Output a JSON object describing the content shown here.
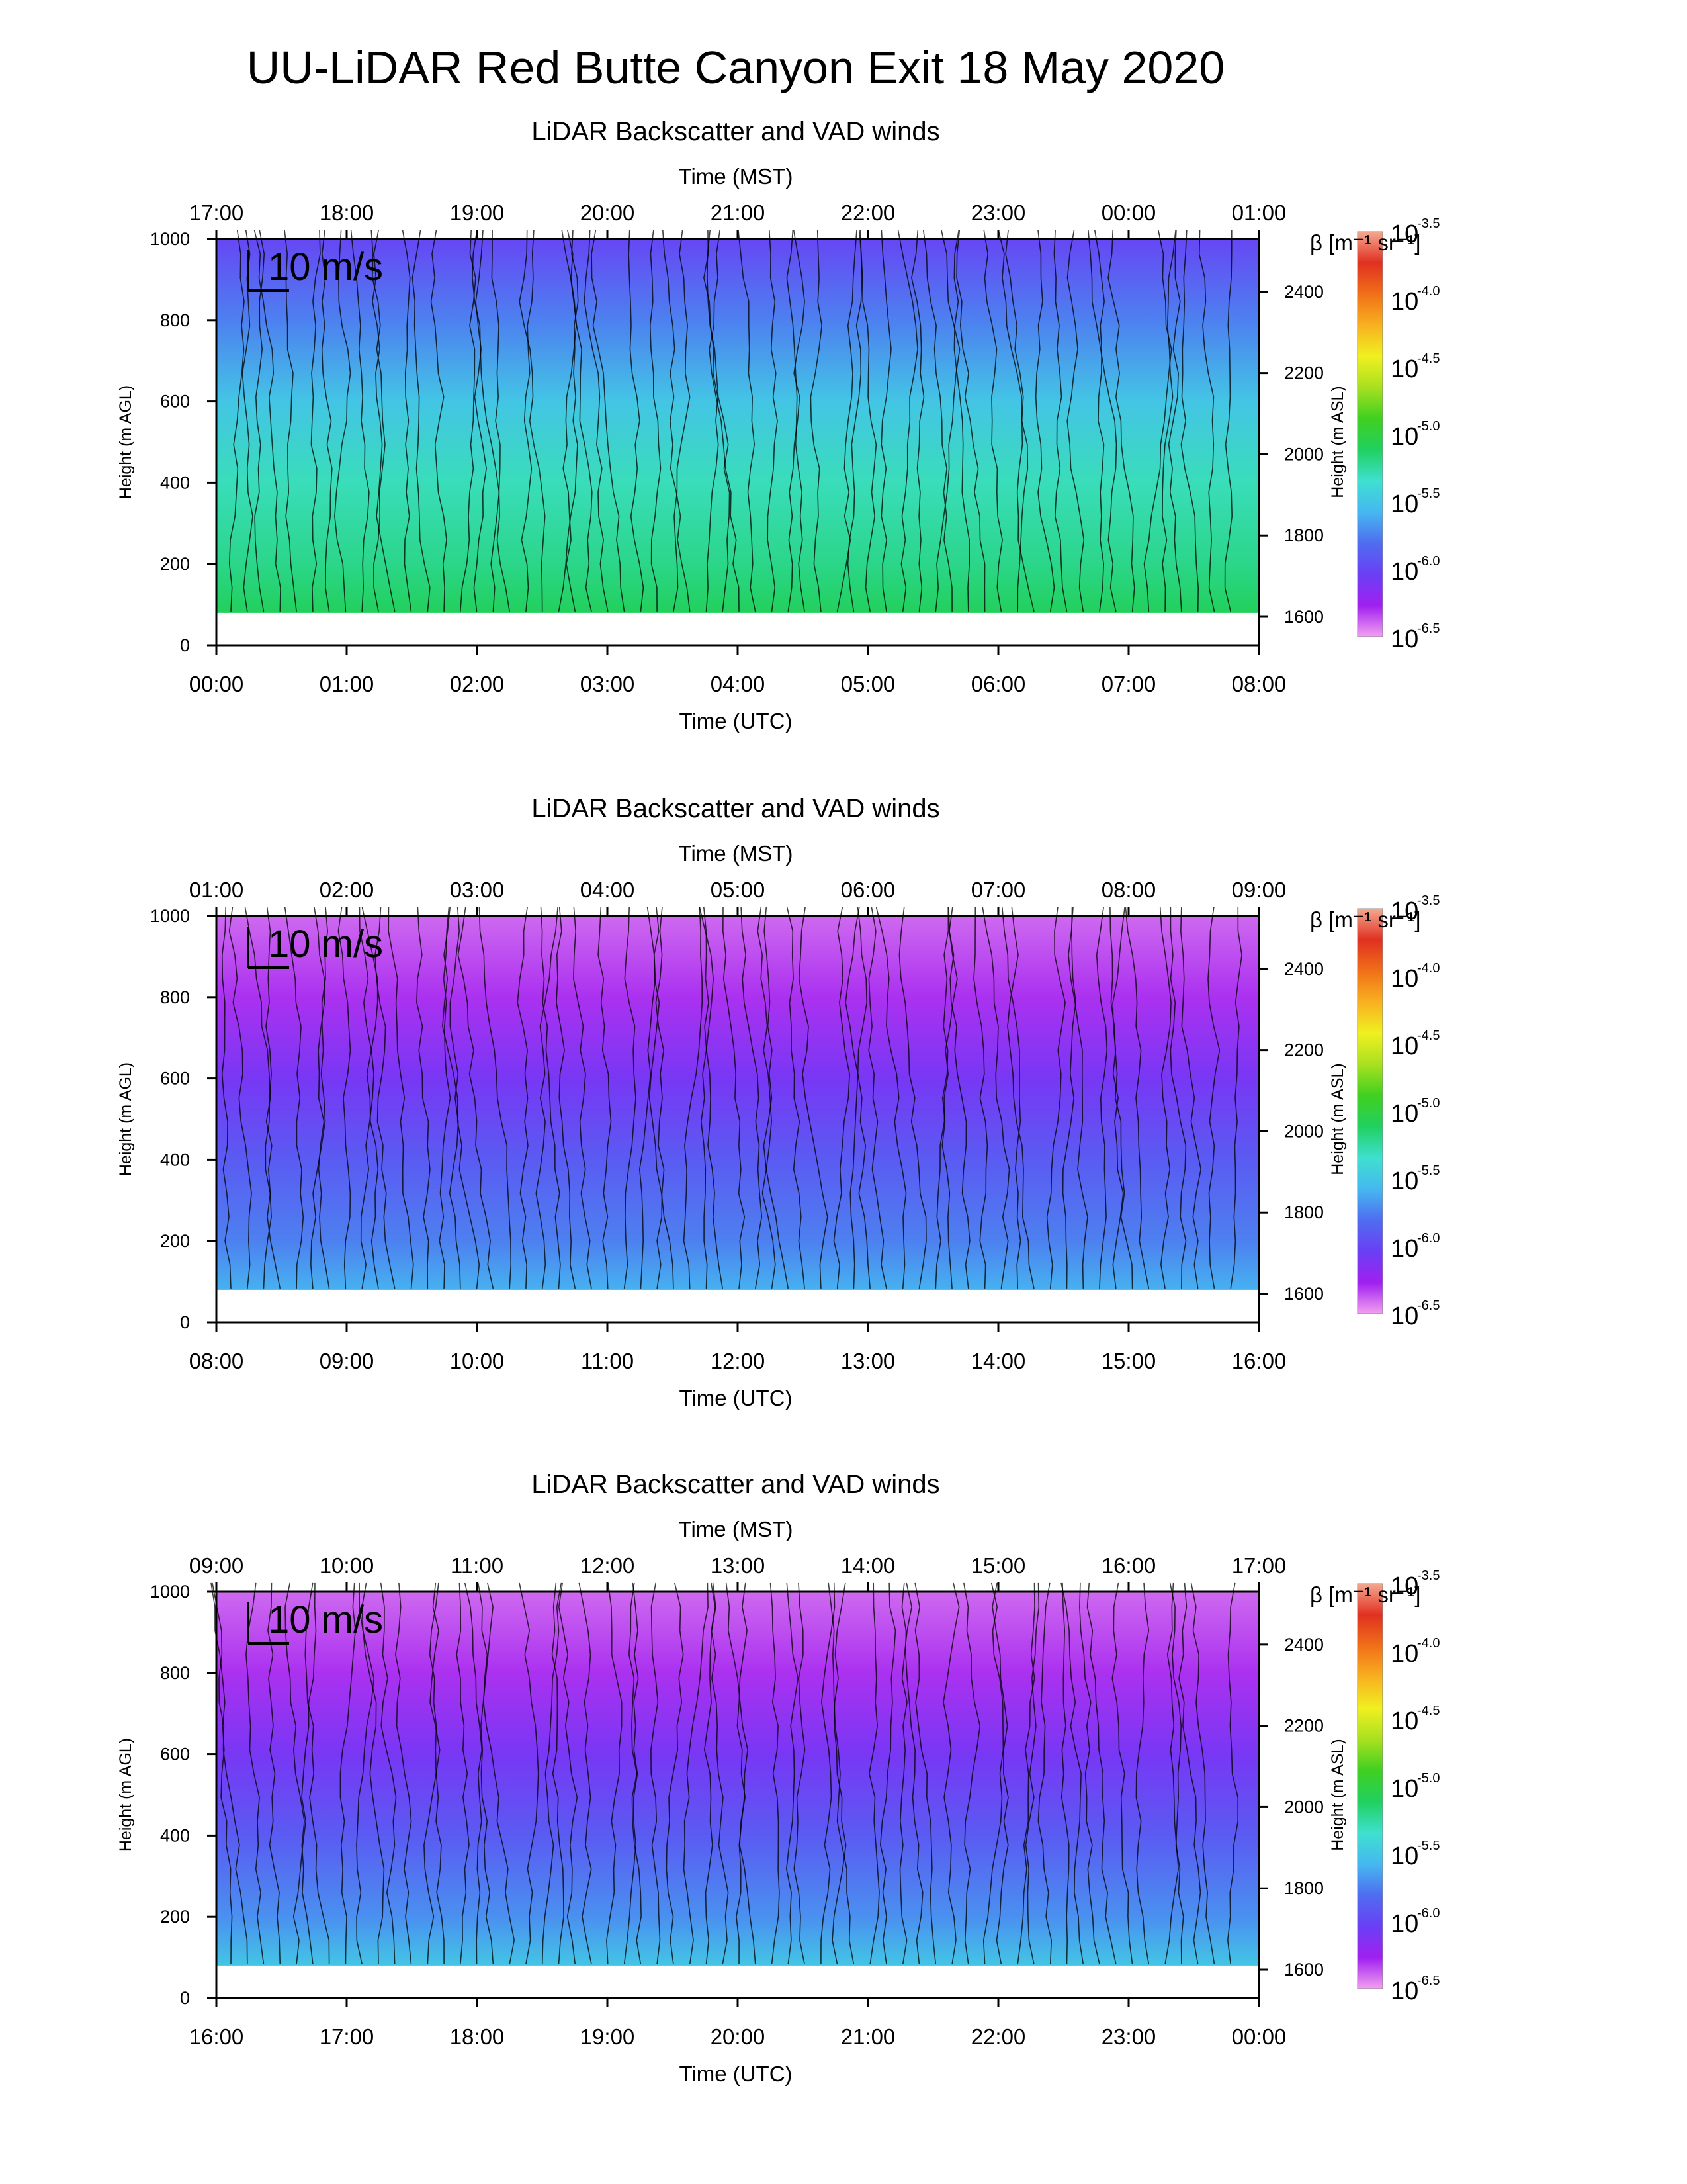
{
  "page": {
    "title": "UU-LiDAR Red Butte Canyon Exit 18 May 2020"
  },
  "colors": {
    "axis": "#000000",
    "background": "#ffffff",
    "wind_barbs": "#000000",
    "colormap": [
      "#f2a0f0",
      "#a020f0",
      "#6a3ff5",
      "#4f6df0",
      "#45b8f0",
      "#3fe0d0",
      "#20d060",
      "#40d020",
      "#a8e020",
      "#f0f020",
      "#f8b020",
      "#f07018",
      "#e03020",
      "#f4a890"
    ]
  },
  "chart_data": [
    {
      "type": "heatmap",
      "title": "LiDAR Backscatter and VAD winds",
      "top_axis_label": "Time (MST)",
      "xlabel": "Time (UTC)",
      "ylabel": "Height (m AGL)",
      "y2label": "Height (m ASL)",
      "colorbar_label": "β [m⁻¹ sr⁻¹]",
      "x_ticks_utc": [
        "00:00",
        "01:00",
        "02:00",
        "03:00",
        "04:00",
        "05:00",
        "06:00",
        "07:00",
        "08:00"
      ],
      "x_ticks_mst": [
        "17:00",
        "18:00",
        "19:00",
        "20:00",
        "21:00",
        "22:00",
        "23:00",
        "00:00",
        "01:00"
      ],
      "xlim_utc_hours": [
        0,
        8
      ],
      "ylim": [
        0,
        1000
      ],
      "y_ticks": [
        0,
        200,
        400,
        600,
        800,
        1000
      ],
      "y2_ticks": [
        1600,
        1800,
        2000,
        2200,
        2400
      ],
      "colorbar_ticks": [
        {
          "base": "10",
          "exp": "-3.5"
        },
        {
          "base": "10",
          "exp": "-4.0"
        },
        {
          "base": "10",
          "exp": "-4.5"
        },
        {
          "base": "10",
          "exp": "-5.0"
        },
        {
          "base": "10",
          "exp": "-5.5"
        },
        {
          "base": "10",
          "exp": "-6.0"
        },
        {
          "base": "10",
          "exp": "-6.5"
        }
      ],
      "colorbar_range_log10": [
        -6.5,
        -3.5
      ],
      "wind_reference_label": "10 m/s",
      "data_floor_m_agl": 80,
      "backscatter_log10_profile": {
        "heights_m": [
          80,
          200,
          400,
          600,
          800,
          1000
        ],
        "log10_beta": [
          -5.1,
          -5.2,
          -5.3,
          -5.5,
          -5.75,
          -6.0
        ]
      }
    },
    {
      "type": "heatmap",
      "title": "LiDAR Backscatter and VAD winds",
      "top_axis_label": "Time (MST)",
      "xlabel": "Time (UTC)",
      "ylabel": "Height (m AGL)",
      "y2label": "Height (m ASL)",
      "colorbar_label": "β [m⁻¹ sr⁻¹]",
      "x_ticks_utc": [
        "08:00",
        "09:00",
        "10:00",
        "11:00",
        "12:00",
        "13:00",
        "14:00",
        "15:00",
        "16:00"
      ],
      "x_ticks_mst": [
        "01:00",
        "02:00",
        "03:00",
        "04:00",
        "05:00",
        "06:00",
        "07:00",
        "08:00",
        "09:00"
      ],
      "xlim_utc_hours": [
        8,
        16
      ],
      "ylim": [
        0,
        1000
      ],
      "y_ticks": [
        0,
        200,
        400,
        600,
        800,
        1000
      ],
      "y2_ticks": [
        1600,
        1800,
        2000,
        2200,
        2400
      ],
      "colorbar_ticks": [
        {
          "base": "10",
          "exp": "-3.5"
        },
        {
          "base": "10",
          "exp": "-4.0"
        },
        {
          "base": "10",
          "exp": "-4.5"
        },
        {
          "base": "10",
          "exp": "-5.0"
        },
        {
          "base": "10",
          "exp": "-5.5"
        },
        {
          "base": "10",
          "exp": "-6.0"
        },
        {
          "base": "10",
          "exp": "-6.5"
        }
      ],
      "colorbar_range_log10": [
        -6.5,
        -3.5
      ],
      "wind_reference_label": "10 m/s",
      "data_floor_m_agl": 80,
      "backscatter_log10_profile": {
        "heights_m": [
          80,
          200,
          400,
          600,
          800,
          1000
        ],
        "log10_beta": [
          -5.6,
          -5.75,
          -5.9,
          -6.1,
          -6.3,
          -6.4
        ]
      }
    },
    {
      "type": "heatmap",
      "title": "LiDAR Backscatter and VAD winds",
      "top_axis_label": "Time (MST)",
      "xlabel": "Time (UTC)",
      "ylabel": "Height (m AGL)",
      "y2label": "Height (m ASL)",
      "colorbar_label": "β [m⁻¹ sr⁻¹]",
      "x_ticks_utc": [
        "16:00",
        "17:00",
        "18:00",
        "19:00",
        "20:00",
        "21:00",
        "22:00",
        "23:00",
        "00:00"
      ],
      "x_ticks_mst": [
        "09:00",
        "10:00",
        "11:00",
        "12:00",
        "13:00",
        "14:00",
        "15:00",
        "16:00",
        "17:00"
      ],
      "xlim_utc_hours": [
        16,
        24
      ],
      "ylim": [
        0,
        1000
      ],
      "y_ticks": [
        0,
        200,
        400,
        600,
        800,
        1000
      ],
      "y2_ticks": [
        1600,
        1800,
        2000,
        2200,
        2400
      ],
      "colorbar_ticks": [
        {
          "base": "10",
          "exp": "-3.5"
        },
        {
          "base": "10",
          "exp": "-4.0"
        },
        {
          "base": "10",
          "exp": "-4.5"
        },
        {
          "base": "10",
          "exp": "-5.0"
        },
        {
          "base": "10",
          "exp": "-5.5"
        },
        {
          "base": "10",
          "exp": "-6.0"
        },
        {
          "base": "10",
          "exp": "-6.5"
        }
      ],
      "colorbar_range_log10": [
        -6.5,
        -3.5
      ],
      "wind_reference_label": "10 m/s",
      "data_floor_m_agl": 80,
      "backscatter_log10_profile": {
        "heights_m": [
          80,
          200,
          400,
          600,
          800,
          1000
        ],
        "log10_beta": [
          -5.5,
          -5.7,
          -5.9,
          -6.1,
          -6.3,
          -6.4
        ]
      }
    }
  ]
}
